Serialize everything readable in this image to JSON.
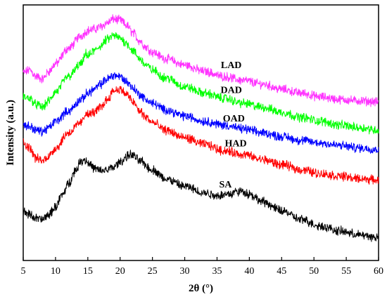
{
  "chart_data": {
    "type": "line",
    "xlabel": "2θ (°)",
    "ylabel": "Intensity (a.u.)",
    "xlim": [
      5,
      60
    ],
    "xticks": [
      5,
      10,
      15,
      20,
      25,
      30,
      35,
      40,
      45,
      50,
      55,
      60
    ],
    "yticks_shown": false,
    "series": [
      {
        "name": "LAD",
        "color": "#ff33ff",
        "x": [
          5,
          6,
          7,
          8,
          9,
          10,
          12,
          14,
          15,
          16,
          17,
          18,
          19,
          20,
          21,
          22,
          23,
          24,
          25,
          27,
          30,
          33,
          36,
          39,
          42,
          45,
          48,
          51,
          54,
          57,
          60
        ],
        "y": [
          0.735,
          0.745,
          0.72,
          0.71,
          0.74,
          0.77,
          0.83,
          0.88,
          0.9,
          0.905,
          0.915,
          0.93,
          0.945,
          0.94,
          0.92,
          0.89,
          0.86,
          0.835,
          0.815,
          0.79,
          0.765,
          0.74,
          0.72,
          0.705,
          0.69,
          0.67,
          0.655,
          0.64,
          0.63,
          0.625,
          0.62
        ]
      },
      {
        "name": "DAD",
        "color": "#00ff00",
        "x": [
          5,
          6,
          7,
          8,
          9,
          10,
          12,
          14,
          14.8,
          15,
          16,
          17,
          18,
          19,
          20,
          21,
          22,
          23,
          24,
          25,
          27,
          30,
          33,
          36,
          39,
          42,
          45,
          48,
          51,
          54,
          57,
          60
        ],
        "y": [
          0.64,
          0.635,
          0.61,
          0.6,
          0.625,
          0.66,
          0.72,
          0.77,
          0.81,
          0.8,
          0.82,
          0.84,
          0.865,
          0.88,
          0.87,
          0.85,
          0.82,
          0.79,
          0.765,
          0.745,
          0.715,
          0.68,
          0.655,
          0.635,
          0.615,
          0.6,
          0.58,
          0.56,
          0.545,
          0.53,
          0.52,
          0.51
        ]
      },
      {
        "name": "OAD",
        "color": "#0000ff",
        "x": [
          5,
          6,
          7,
          8,
          9,
          10,
          12,
          14,
          15,
          16,
          17,
          18,
          19,
          20,
          21,
          22,
          23,
          24,
          25,
          27,
          30,
          33,
          36,
          39,
          42,
          45,
          48,
          51,
          54,
          57,
          60
        ],
        "y": [
          0.53,
          0.525,
          0.51,
          0.505,
          0.52,
          0.545,
          0.585,
          0.63,
          0.655,
          0.67,
          0.69,
          0.71,
          0.725,
          0.72,
          0.7,
          0.675,
          0.65,
          0.63,
          0.615,
          0.59,
          0.565,
          0.545,
          0.53,
          0.515,
          0.5,
          0.485,
          0.47,
          0.46,
          0.45,
          0.44,
          0.435
        ]
      },
      {
        "name": "HAD",
        "color": "#ff0000",
        "x": [
          5,
          6,
          7,
          8,
          9,
          10,
          12,
          14,
          14.8,
          15,
          16,
          17,
          18,
          19,
          20,
          21,
          22,
          23,
          24,
          25,
          27,
          30,
          33,
          36,
          39,
          42,
          45,
          48,
          51,
          54,
          57,
          60
        ],
        "y": [
          0.46,
          0.44,
          0.4,
          0.39,
          0.41,
          0.44,
          0.5,
          0.54,
          0.58,
          0.57,
          0.58,
          0.6,
          0.63,
          0.665,
          0.67,
          0.65,
          0.62,
          0.585,
          0.56,
          0.54,
          0.51,
          0.48,
          0.455,
          0.43,
          0.415,
          0.395,
          0.375,
          0.355,
          0.34,
          0.33,
          0.32,
          0.315
        ]
      },
      {
        "name": "SA",
        "color": "#000000",
        "x": [
          5,
          6,
          7,
          8,
          9,
          10,
          11,
          12,
          13,
          14,
          14.5,
          15,
          16,
          17,
          18,
          19,
          20,
          21,
          21.5,
          22,
          23,
          25,
          27,
          30,
          33,
          35,
          37,
          38,
          39,
          40,
          42,
          45,
          48,
          51,
          54,
          57,
          60
        ],
        "y": [
          0.19,
          0.18,
          0.165,
          0.16,
          0.18,
          0.21,
          0.255,
          0.3,
          0.35,
          0.39,
          0.395,
          0.385,
          0.36,
          0.35,
          0.355,
          0.365,
          0.385,
          0.405,
          0.415,
          0.41,
          0.39,
          0.355,
          0.32,
          0.29,
          0.265,
          0.255,
          0.26,
          0.27,
          0.27,
          0.26,
          0.23,
          0.195,
          0.16,
          0.135,
          0.115,
          0.1,
          0.09
        ]
      }
    ]
  }
}
